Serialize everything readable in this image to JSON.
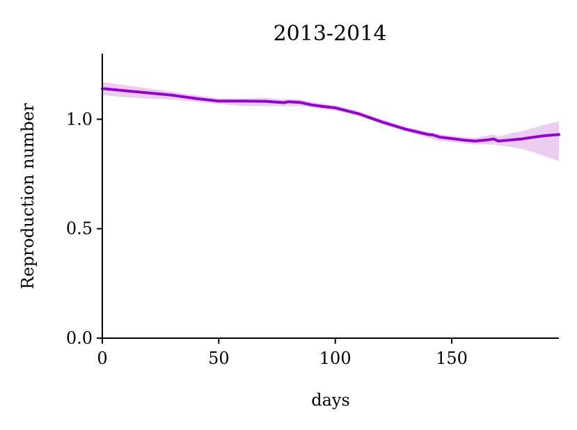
{
  "chart_data": {
    "type": "line",
    "title": "2013-2014",
    "xlabel": "days",
    "ylabel": "Reproduction number",
    "xlim": [
      0,
      196
    ],
    "ylim": [
      0,
      1.3
    ],
    "xticks": [
      0,
      50,
      100,
      150
    ],
    "yticks": [
      0.0,
      0.5,
      1.0
    ],
    "xtick_labels": [
      "0",
      "50",
      "100",
      "150"
    ],
    "ytick_labels": [
      "0.0",
      "0.5",
      "1.0"
    ],
    "grid": false,
    "colors": {
      "line": "#9400d3",
      "band": "#e8c4ec"
    },
    "series": [
      {
        "x": [
          0,
          10,
          20,
          30,
          40,
          50,
          60,
          70,
          78,
          80,
          85,
          90,
          95,
          100,
          110,
          120,
          130,
          140,
          142,
          145,
          150,
          155,
          160,
          165,
          168,
          170,
          175,
          180,
          185,
          190,
          196
        ],
        "y": [
          1.14,
          1.13,
          1.12,
          1.11,
          1.095,
          1.083,
          1.083,
          1.082,
          1.076,
          1.08,
          1.077,
          1.065,
          1.058,
          1.052,
          1.025,
          0.988,
          0.955,
          0.93,
          0.928,
          0.918,
          0.912,
          0.905,
          0.9,
          0.905,
          0.91,
          0.9,
          0.905,
          0.91,
          0.918,
          0.925,
          0.93
        ],
        "lower": [
          1.11,
          1.1,
          1.095,
          1.09,
          1.08,
          1.07,
          1.06,
          1.06,
          1.06,
          1.06,
          1.06,
          1.055,
          1.045,
          1.04,
          1.015,
          0.978,
          0.945,
          0.915,
          0.91,
          0.9,
          0.895,
          0.89,
          0.885,
          0.885,
          0.885,
          0.88,
          0.875,
          0.865,
          0.85,
          0.83,
          0.81
        ],
        "upper": [
          1.17,
          1.155,
          1.14,
          1.125,
          1.11,
          1.095,
          1.095,
          1.098,
          1.09,
          1.092,
          1.09,
          1.078,
          1.07,
          1.063,
          1.035,
          0.998,
          0.965,
          0.94,
          0.938,
          0.93,
          0.925,
          0.918,
          0.915,
          0.925,
          0.93,
          0.92,
          0.935,
          0.945,
          0.96,
          0.975,
          0.99
        ]
      }
    ]
  }
}
